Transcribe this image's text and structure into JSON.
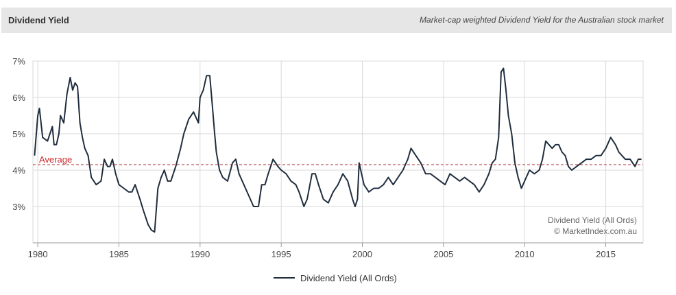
{
  "header": {
    "title": "Dividend Yield",
    "subtitle": "Market-cap weighted Dividend Yield for the Australian stock market"
  },
  "credit": {
    "line1": "Dividend Yield (All Ords)",
    "line2": "© MarketIndex.com.au"
  },
  "legend": {
    "label": "Dividend Yield (All Ords)"
  },
  "colors": {
    "series": "#1f2d3d",
    "average": "#a83232",
    "grid": "#d9d9d9",
    "header_bg": "#e6e6e6"
  },
  "chart_data": {
    "type": "line",
    "title": "Dividend Yield",
    "subtitle": "Market-cap weighted Dividend Yield for the Australian stock market",
    "xlabel": "",
    "ylabel": "",
    "xlim": [
      1979.7,
      2017.3
    ],
    "ylim": [
      2.0,
      7.0
    ],
    "x_ticks": [
      1980,
      1985,
      1990,
      1995,
      2000,
      2005,
      2010,
      2015
    ],
    "x_tick_labels": [
      "1980",
      "1985",
      "1990",
      "1995",
      "2000",
      "2005",
      "2010",
      "2015"
    ],
    "y_ticks": [
      3,
      4,
      5,
      6,
      7
    ],
    "y_tick_labels": [
      "3%",
      "4%",
      "5%",
      "6%",
      "7%"
    ],
    "grid": true,
    "legend_position": "bottom",
    "average": {
      "label": "Average",
      "value": 4.15
    },
    "series": [
      {
        "name": "Dividend Yield (All Ords)",
        "x": [
          1979.8,
          1980.0,
          1980.1,
          1980.3,
          1980.6,
          1980.9,
          1981.0,
          1981.15,
          1981.3,
          1981.4,
          1981.6,
          1981.8,
          1982.0,
          1982.15,
          1982.3,
          1982.45,
          1982.6,
          1982.75,
          1982.9,
          1983.1,
          1983.3,
          1983.6,
          1983.9,
          1984.1,
          1984.3,
          1984.45,
          1984.6,
          1984.8,
          1985.0,
          1985.3,
          1985.6,
          1985.8,
          1986.0,
          1986.3,
          1986.5,
          1986.8,
          1987.0,
          1987.2,
          1987.4,
          1987.6,
          1987.8,
          1988.0,
          1988.2,
          1988.5,
          1988.8,
          1989.0,
          1989.3,
          1989.6,
          1989.9,
          1990.0,
          1990.2,
          1990.4,
          1990.6,
          1990.75,
          1990.9,
          1991.0,
          1991.2,
          1991.4,
          1991.7,
          1992.0,
          1992.2,
          1992.4,
          1992.7,
          1993.0,
          1993.3,
          1993.6,
          1993.8,
          1994.0,
          1994.2,
          1994.5,
          1994.8,
          1995.0,
          1995.3,
          1995.6,
          1995.9,
          1996.1,
          1996.4,
          1996.6,
          1996.9,
          1997.1,
          1997.3,
          1997.6,
          1997.9,
          1998.2,
          1998.5,
          1998.8,
          1999.1,
          1999.4,
          1999.55,
          1999.7,
          1999.8,
          2000.1,
          2000.4,
          2000.7,
          2001.0,
          2001.3,
          2001.6,
          2001.9,
          2002.2,
          2002.5,
          2002.8,
          2003.0,
          2003.3,
          2003.6,
          2003.9,
          2004.2,
          2004.5,
          2004.8,
          2005.1,
          2005.4,
          2005.7,
          2006.0,
          2006.3,
          2006.6,
          2006.9,
          2007.2,
          2007.5,
          2007.8,
          2008.0,
          2008.2,
          2008.4,
          2008.55,
          2008.7,
          2008.85,
          2009.0,
          2009.2,
          2009.4,
          2009.6,
          2009.8,
          2010.0,
          2010.3,
          2010.6,
          2010.9,
          2011.1,
          2011.3,
          2011.5,
          2011.7,
          2011.9,
          2012.1,
          2012.3,
          2012.5,
          2012.7,
          2012.9,
          2013.2,
          2013.5,
          2013.8,
          2014.1,
          2014.4,
          2014.7,
          2015.0,
          2015.3,
          2015.6,
          2015.8,
          2016.0,
          2016.2,
          2016.5,
          2016.8,
          2017.0,
          2017.2
        ],
        "values": [
          4.4,
          5.5,
          5.7,
          4.9,
          4.8,
          5.2,
          4.7,
          4.7,
          5.0,
          5.5,
          5.3,
          6.1,
          6.55,
          6.2,
          6.4,
          6.3,
          5.3,
          4.9,
          4.6,
          4.4,
          3.8,
          3.6,
          3.7,
          4.3,
          4.1,
          4.1,
          4.3,
          3.9,
          3.6,
          3.5,
          3.4,
          3.4,
          3.6,
          3.2,
          2.9,
          2.5,
          2.35,
          2.3,
          3.5,
          3.8,
          4.0,
          3.7,
          3.7,
          4.1,
          4.6,
          5.0,
          5.4,
          5.6,
          5.3,
          6.0,
          6.2,
          6.6,
          6.6,
          5.8,
          5.0,
          4.5,
          4.0,
          3.8,
          3.7,
          4.2,
          4.3,
          3.9,
          3.6,
          3.3,
          3.0,
          3.0,
          3.6,
          3.6,
          3.9,
          4.3,
          4.1,
          4.0,
          3.9,
          3.7,
          3.6,
          3.4,
          3.0,
          3.2,
          3.9,
          3.9,
          3.6,
          3.2,
          3.1,
          3.4,
          3.6,
          3.9,
          3.7,
          3.2,
          3.0,
          3.2,
          4.2,
          3.6,
          3.4,
          3.5,
          3.5,
          3.6,
          3.8,
          3.6,
          3.8,
          4.0,
          4.3,
          4.6,
          4.4,
          4.2,
          3.9,
          3.9,
          3.8,
          3.7,
          3.6,
          3.9,
          3.8,
          3.7,
          3.8,
          3.7,
          3.6,
          3.4,
          3.6,
          3.9,
          4.2,
          4.3,
          4.9,
          6.7,
          6.8,
          6.2,
          5.5,
          5.0,
          4.2,
          3.8,
          3.5,
          3.7,
          4.0,
          3.9,
          4.0,
          4.3,
          4.8,
          4.7,
          4.6,
          4.7,
          4.7,
          4.5,
          4.4,
          4.1,
          4.0,
          4.1,
          4.2,
          4.3,
          4.3,
          4.4,
          4.4,
          4.6,
          4.9,
          4.7,
          4.5,
          4.4,
          4.3,
          4.3,
          4.1,
          4.3,
          4.3
        ]
      }
    ]
  }
}
